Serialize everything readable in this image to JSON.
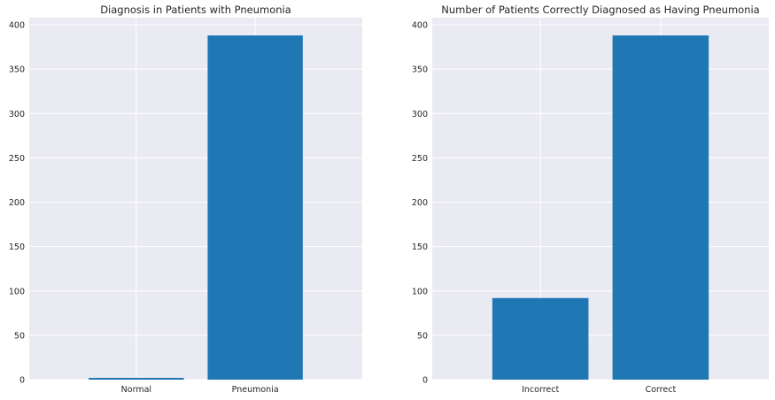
{
  "chart_data": [
    {
      "type": "bar",
      "title": "Diagnosis in Patients with Pneumonia",
      "xlabel": "",
      "ylabel": "",
      "categories": [
        "Normal",
        "Pneumonia"
      ],
      "values": [
        2,
        388
      ],
      "ylim": [
        0,
        408
      ],
      "yticks": [
        0,
        50,
        100,
        150,
        200,
        250,
        300,
        350,
        400
      ],
      "grid": true,
      "bar_color": "#1f77b4",
      "background_color": "#eaeaf2"
    },
    {
      "type": "bar",
      "title": "Number of Patients Correctly Diagnosed as Having Pneumonia",
      "xlabel": "",
      "ylabel": "",
      "categories": [
        "Incorrect",
        "Correct"
      ],
      "values": [
        92,
        388
      ],
      "ylim": [
        0,
        408
      ],
      "yticks": [
        0,
        50,
        100,
        150,
        200,
        250,
        300,
        350,
        400
      ],
      "grid": true,
      "bar_color": "#1f77b4",
      "background_color": "#eaeaf2"
    }
  ]
}
